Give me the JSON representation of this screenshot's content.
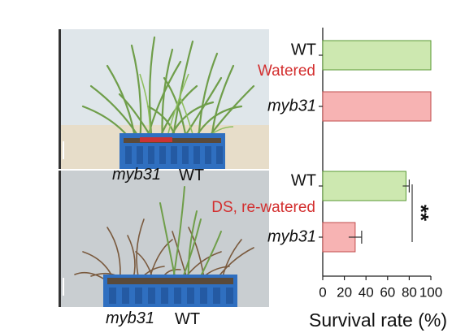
{
  "photos": {
    "top": {
      "genotype_label": "myb31",
      "wt_label": "WT"
    },
    "bottom": {
      "genotype_label": "myb31",
      "wt_label": "WT"
    }
  },
  "chart_data": {
    "type": "bar",
    "orientation": "horizontal",
    "title": "",
    "xlabel": "Survival rate (%)",
    "ylabel": "",
    "xlim": [
      0,
      100
    ],
    "xticks": [
      "0",
      "20",
      "40",
      "60",
      "80",
      "100"
    ],
    "groups": [
      {
        "condition": "Watered",
        "condition_color": "#d32f2f",
        "bars": [
          {
            "category": "WT",
            "value": 100,
            "error": 0,
            "color": "#cde8b0",
            "edge": "#5a9a35"
          },
          {
            "category": "myb31",
            "value": 100,
            "error": 0,
            "color": "#f7b3b3",
            "edge": "#c24d4d"
          }
        ]
      },
      {
        "condition": "DS, re-watered",
        "condition_color": "#d32f2f",
        "bars": [
          {
            "category": "WT",
            "value": 77,
            "error": 3,
            "color": "#cde8b0",
            "edge": "#5a9a35"
          },
          {
            "category": "myb31",
            "value": 30,
            "error": 6,
            "color": "#f7b3b3",
            "edge": "#c24d4d"
          }
        ]
      }
    ],
    "significance": "**",
    "grid": false,
    "legend": "none"
  }
}
